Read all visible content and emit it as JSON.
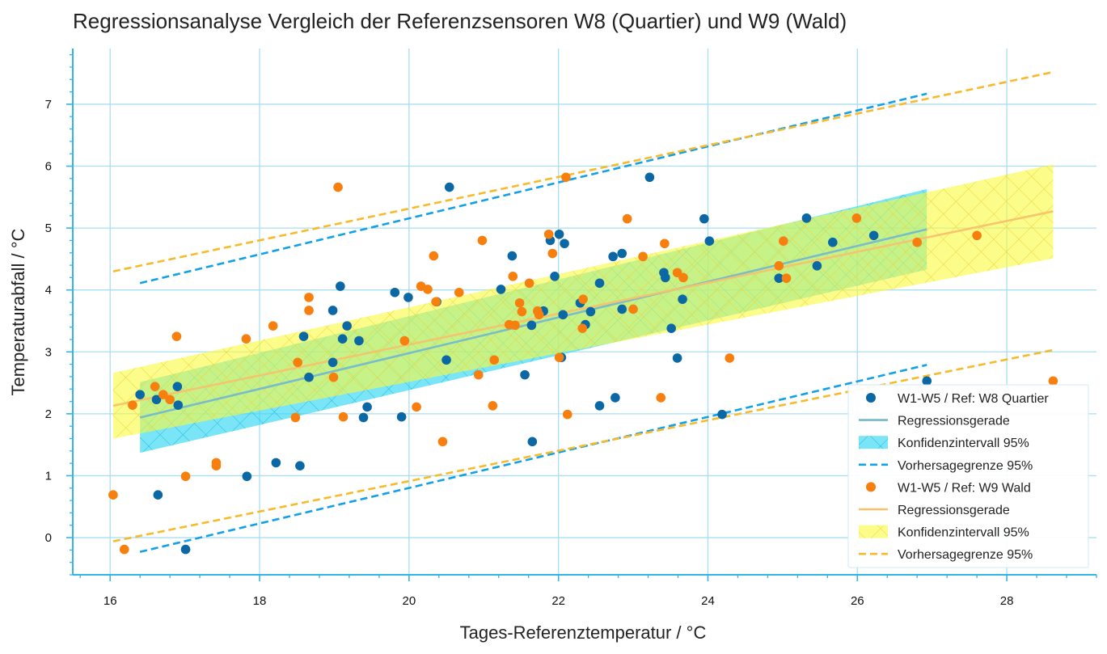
{
  "chart_data": {
    "type": "scatter",
    "title": "Regressionsanalyse Vergleich der Referenzsensoren W8 (Quartier) und W9 (Wald)",
    "xlabel": "Tages-Referenztemperatur / °C",
    "ylabel": "Temperaturabfall / °C",
    "xlim": [
      15.5,
      29.2
    ],
    "ylim": [
      -0.6,
      7.9
    ],
    "xticks": [
      16,
      18,
      20,
      22,
      24,
      26,
      28
    ],
    "yticks": [
      0,
      1,
      2,
      3,
      4,
      5,
      6,
      7
    ],
    "grid": true,
    "legend_position": "bottom-right",
    "colors": {
      "w8_points": "#0b68a4",
      "w8_line": "#74b9cc",
      "w8_band": "#34d8f5",
      "w8_pred": "#12a0e8",
      "w9_points": "#f77f0e",
      "w9_line": "#f6c26d",
      "w9_band": "#fafa3c",
      "w9_pred": "#f7ba2a",
      "grid": "#a9def2",
      "axis": "#33b5e5"
    },
    "series": [
      {
        "name": "W1-W5 / Ref: W8 Quartier",
        "kind": "scatter",
        "points": [
          [
            16.4,
            2.31
          ],
          [
            16.62,
            2.23
          ],
          [
            16.64,
            0.69
          ],
          [
            16.9,
            2.44
          ],
          [
            16.91,
            2.14
          ],
          [
            17.01,
            -0.19
          ],
          [
            17.83,
            0.99
          ],
          [
            18.22,
            1.21
          ],
          [
            18.54,
            1.16
          ],
          [
            18.59,
            3.25
          ],
          [
            18.66,
            2.59
          ],
          [
            18.98,
            3.67
          ],
          [
            18.98,
            2.83
          ],
          [
            19.08,
            4.06
          ],
          [
            19.11,
            3.21
          ],
          [
            19.17,
            3.42
          ],
          [
            19.33,
            3.18
          ],
          [
            19.39,
            1.94
          ],
          [
            19.44,
            2.11
          ],
          [
            19.81,
            3.96
          ],
          [
            19.9,
            1.95
          ],
          [
            19.99,
            3.88
          ],
          [
            20.37,
            3.81
          ],
          [
            20.5,
            2.87
          ],
          [
            20.54,
            5.66
          ],
          [
            21.23,
            4.01
          ],
          [
            21.38,
            4.55
          ],
          [
            21.55,
            2.63
          ],
          [
            21.64,
            3.43
          ],
          [
            21.65,
            1.55
          ],
          [
            21.8,
            3.66
          ],
          [
            21.89,
            4.8
          ],
          [
            21.95,
            4.22
          ],
          [
            22.01,
            4.9
          ],
          [
            22.04,
            2.91
          ],
          [
            22.06,
            3.6
          ],
          [
            22.08,
            4.75
          ],
          [
            22.29,
            3.79
          ],
          [
            22.36,
            3.44
          ],
          [
            22.43,
            3.65
          ],
          [
            22.55,
            4.11
          ],
          [
            22.55,
            2.13
          ],
          [
            22.73,
            4.54
          ],
          [
            22.76,
            2.26
          ],
          [
            22.85,
            4.59
          ],
          [
            22.85,
            3.69
          ],
          [
            23.22,
            5.82
          ],
          [
            23.41,
            4.28
          ],
          [
            23.43,
            4.2
          ],
          [
            23.51,
            3.38
          ],
          [
            23.59,
            2.9
          ],
          [
            23.66,
            3.85
          ],
          [
            23.95,
            5.15
          ],
          [
            24.02,
            4.79
          ],
          [
            24.19,
            1.99
          ],
          [
            24.95,
            4.19
          ],
          [
            25.32,
            5.16
          ],
          [
            25.46,
            4.39
          ],
          [
            25.67,
            4.77
          ],
          [
            26.22,
            4.88
          ],
          [
            26.93,
            2.53
          ]
        ]
      },
      {
        "name": "Regressionsgerade",
        "kind": "line",
        "x": [
          16.4,
          26.93
        ],
        "y": [
          1.94,
          4.98
        ]
      },
      {
        "name": "Konfidenzintervall 95%",
        "kind": "band",
        "x": [
          16.4,
          26.93
        ],
        "lower": [
          1.37,
          4.33
        ],
        "upper": [
          2.51,
          5.63
        ]
      },
      {
        "name": "Vorhersagegrenze 95%",
        "kind": "prediction",
        "x": [
          16.4,
          26.93
        ],
        "lower": [
          -0.23,
          2.79
        ],
        "upper": [
          4.11,
          7.17
        ]
      },
      {
        "name": "W1-W5 / Ref: W9 Wald",
        "kind": "scatter",
        "points": [
          [
            16.04,
            0.69
          ],
          [
            16.19,
            -0.19
          ],
          [
            16.3,
            2.14
          ],
          [
            16.6,
            2.44
          ],
          [
            16.71,
            2.31
          ],
          [
            16.8,
            2.23
          ],
          [
            16.89,
            3.25
          ],
          [
            17.01,
            0.99
          ],
          [
            17.42,
            1.16
          ],
          [
            17.42,
            1.21
          ],
          [
            17.82,
            3.21
          ],
          [
            18.18,
            3.42
          ],
          [
            18.48,
            1.94
          ],
          [
            18.51,
            2.83
          ],
          [
            18.66,
            3.88
          ],
          [
            18.66,
            3.67
          ],
          [
            18.99,
            2.59
          ],
          [
            19.05,
            5.66
          ],
          [
            19.12,
            1.95
          ],
          [
            19.94,
            3.18
          ],
          [
            20.1,
            2.11
          ],
          [
            20.16,
            4.06
          ],
          [
            20.25,
            4.01
          ],
          [
            20.33,
            4.55
          ],
          [
            20.36,
            3.81
          ],
          [
            20.45,
            1.55
          ],
          [
            20.67,
            3.96
          ],
          [
            20.93,
            2.63
          ],
          [
            20.98,
            4.8
          ],
          [
            21.12,
            2.13
          ],
          [
            21.14,
            2.87
          ],
          [
            21.34,
            3.44
          ],
          [
            21.39,
            4.22
          ],
          [
            21.42,
            3.43
          ],
          [
            21.48,
            3.79
          ],
          [
            21.51,
            3.65
          ],
          [
            21.61,
            4.11
          ],
          [
            21.72,
            3.66
          ],
          [
            21.74,
            3.6
          ],
          [
            21.87,
            4.9
          ],
          [
            21.92,
            4.59
          ],
          [
            22.01,
            2.91
          ],
          [
            22.1,
            5.82
          ],
          [
            22.12,
            1.99
          ],
          [
            22.32,
            3.38
          ],
          [
            22.33,
            3.85
          ],
          [
            22.92,
            5.15
          ],
          [
            23.0,
            3.69
          ],
          [
            23.13,
            4.54
          ],
          [
            23.37,
            2.26
          ],
          [
            23.42,
            4.75
          ],
          [
            23.59,
            4.28
          ],
          [
            23.67,
            4.2
          ],
          [
            24.29,
            2.9
          ],
          [
            24.95,
            4.39
          ],
          [
            25.01,
            4.79
          ],
          [
            25.05,
            4.19
          ],
          [
            25.99,
            5.16
          ],
          [
            26.8,
            4.77
          ],
          [
            27.6,
            4.88
          ],
          [
            28.62,
            2.53
          ]
        ]
      },
      {
        "name": "Regressionsgerade",
        "kind": "line",
        "x": [
          16.04,
          28.62
        ],
        "y": [
          2.13,
          5.27
        ]
      },
      {
        "name": "Konfidenzintervall 95%",
        "kind": "band",
        "x": [
          16.04,
          28.62
        ],
        "lower": [
          1.6,
          4.51
        ],
        "upper": [
          2.66,
          6.03
        ]
      },
      {
        "name": "Vorhersagegrenze 95%",
        "kind": "prediction",
        "x": [
          16.04,
          28.62
        ],
        "lower": [
          -0.06,
          3.03
        ],
        "upper": [
          4.3,
          7.52
        ]
      }
    ]
  }
}
